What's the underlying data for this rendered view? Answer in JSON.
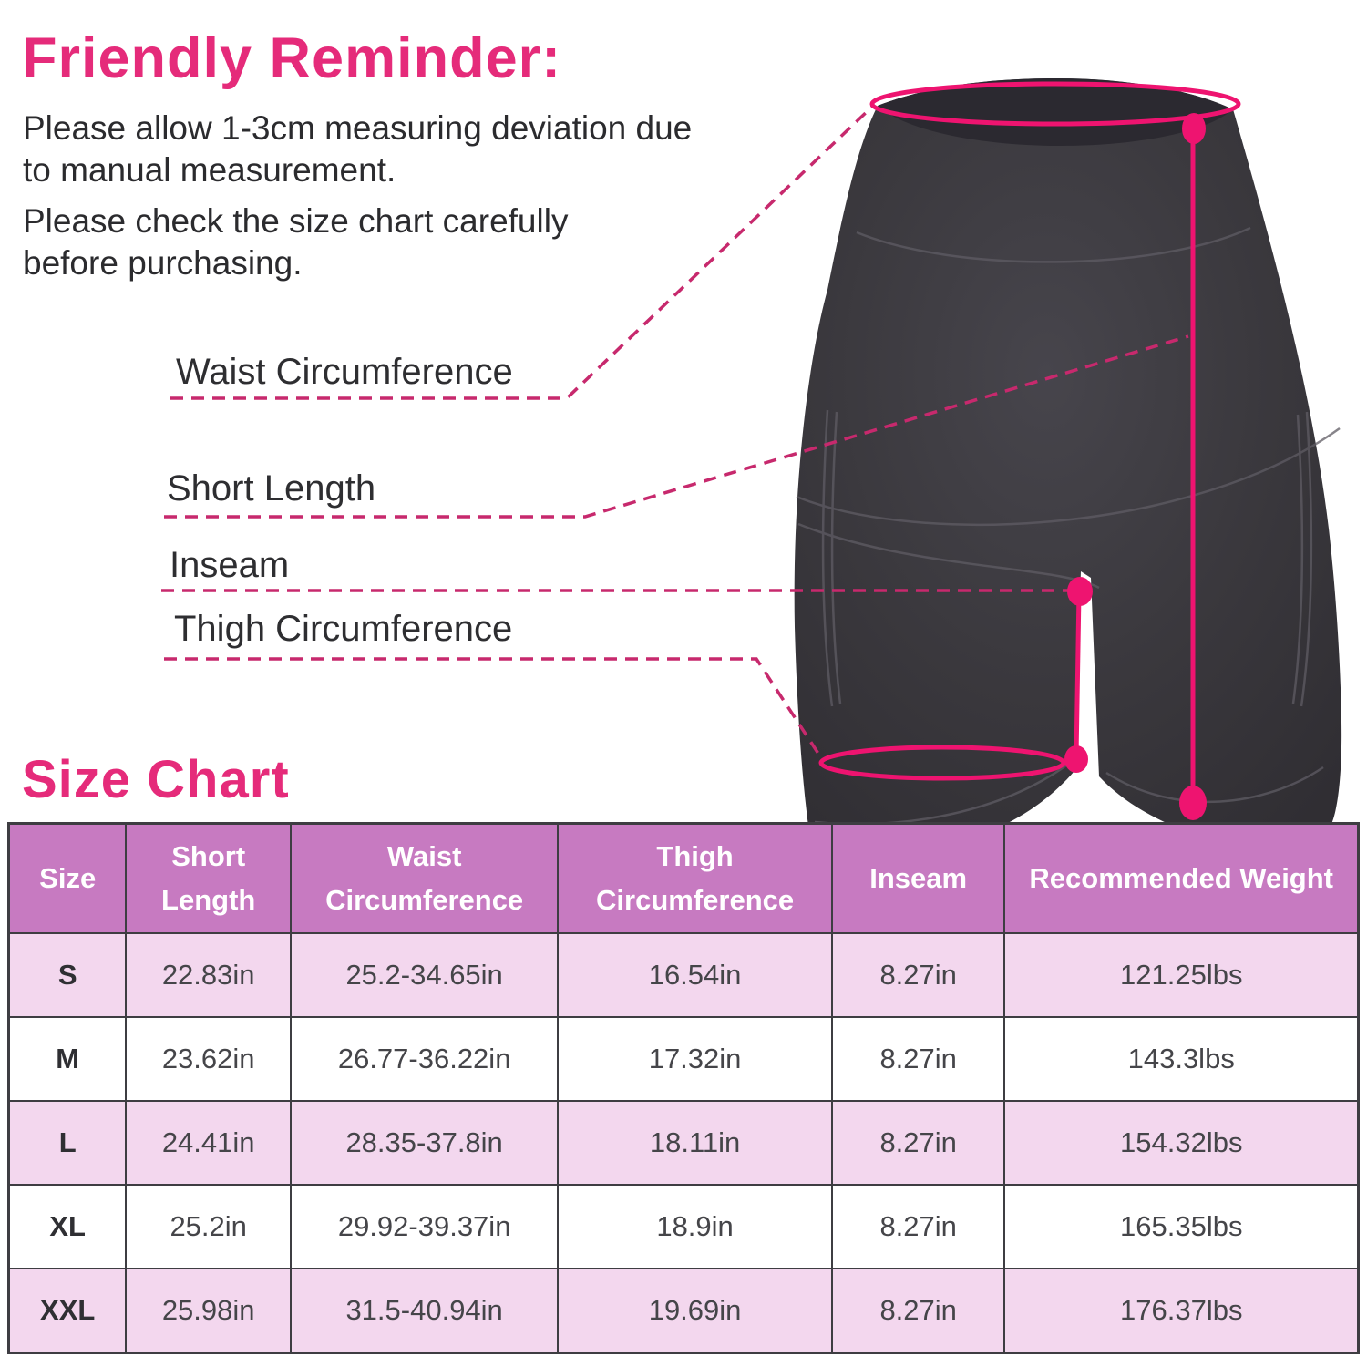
{
  "colors": {
    "accent_pink": "#e52b7a",
    "leader_line_pink": "#c7296d",
    "measure_pink": "#ee1470",
    "table_header_purple": "#c77ac1",
    "table_row_pink": "#f3d7ee",
    "table_row_white": "#ffffff",
    "table_border": "#3e3d42",
    "shorts_fabric": "#3a383d",
    "text_dark": "#2b2b2e"
  },
  "reminder": {
    "title": "Friendly Reminder:",
    "lines": [
      "Please allow 1-3cm measuring deviation due",
      "to manual measurement.",
      "Please check the size chart carefully",
      "before purchasing."
    ]
  },
  "annotations": [
    {
      "label": "Waist Circumference"
    },
    {
      "label": "Short Length"
    },
    {
      "label": "Inseam"
    },
    {
      "label": "Thigh Circumference"
    }
  ],
  "size_chart": {
    "title": "Size Chart",
    "columns": [
      "Size",
      "Short\nLength",
      "Waist\nCircumference",
      "Thigh\nCircumference",
      "Inseam",
      "Recommended Weight"
    ],
    "rows": [
      [
        "S",
        "22.83in",
        "25.2-34.65in",
        "16.54in",
        "8.27in",
        "121.25lbs"
      ],
      [
        "M",
        "23.62in",
        "26.77-36.22in",
        "17.32in",
        "8.27in",
        "143.3lbs"
      ],
      [
        "L",
        "24.41in",
        "28.35-37.8in",
        "18.11in",
        "8.27in",
        "154.32lbs"
      ],
      [
        "XL",
        "25.2in",
        "29.92-39.37in",
        "18.9in",
        "8.27in",
        "165.35lbs"
      ],
      [
        "XXL",
        "25.98in",
        "31.5-40.94in",
        "19.69in",
        "8.27in",
        "176.37lbs"
      ]
    ]
  },
  "chart_data": {
    "type": "table",
    "title": "Size Chart",
    "columns": [
      "Size",
      "Short Length",
      "Waist Circumference",
      "Thigh Circumference",
      "Inseam",
      "Recommended Weight"
    ],
    "rows": [
      [
        "S",
        "22.83in",
        "25.2-34.65in",
        "16.54in",
        "8.27in",
        "121.25lbs"
      ],
      [
        "M",
        "23.62in",
        "26.77-36.22in",
        "17.32in",
        "8.27in",
        "143.3lbs"
      ],
      [
        "L",
        "24.41in",
        "28.35-37.8in",
        "18.11in",
        "8.27in",
        "154.32lbs"
      ],
      [
        "XL",
        "25.2in",
        "29.92-39.37in",
        "18.9in",
        "8.27in",
        "165.35lbs"
      ],
      [
        "XXL",
        "25.98in",
        "31.5-40.94in",
        "19.69in",
        "8.27in",
        "176.37lbs"
      ]
    ]
  }
}
